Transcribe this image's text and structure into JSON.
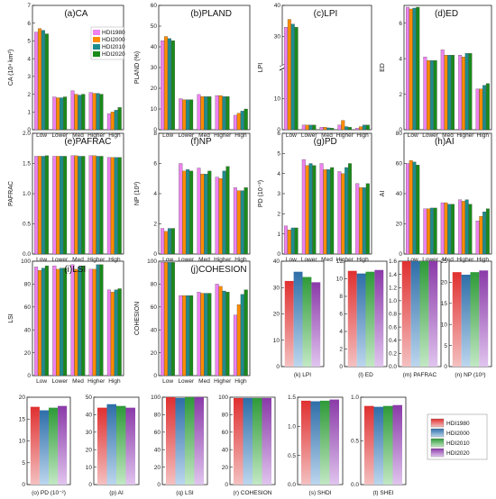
{
  "colors": {
    "HDI1980": "#ee82ee",
    "HDI2000": "#ff8c00",
    "HDI2010": "#1e8c8c",
    "HDI2020": "#1a8a1a",
    "grad": [
      [
        "#e03030",
        "#f4c0c0"
      ],
      [
        "#2e6ea8",
        "#bcd6ee"
      ],
      [
        "#2e9a38",
        "#c2e8c4"
      ],
      [
        "#8a3aa8",
        "#e0c4ee"
      ]
    ]
  },
  "chart_data": [
    {
      "type": "bar",
      "id": "a",
      "title": "(a)CA",
      "ylabel": "CA (10⁴ km²)",
      "ylim": [
        0,
        7
      ],
      "yticks": [
        0,
        1,
        2,
        3,
        4,
        5,
        6,
        7
      ],
      "categories": [
        "Low",
        "Lower",
        "Med",
        "Higher",
        "High"
      ],
      "legend": "top-right",
      "series": [
        {
          "name": "HDI1980",
          "values": [
            5.5,
            1.85,
            2.2,
            2.1,
            0.9
          ]
        },
        {
          "name": "HDI2000",
          "values": [
            5.7,
            1.8,
            2.0,
            2.05,
            1.0
          ]
        },
        {
          "name": "HDI2010",
          "values": [
            5.6,
            1.8,
            1.95,
            2.05,
            1.1
          ]
        },
        {
          "name": "HDI2020",
          "values": [
            5.4,
            1.85,
            2.0,
            2.0,
            1.25
          ]
        }
      ]
    },
    {
      "type": "bar",
      "id": "b",
      "title": "(b)PLAND",
      "ylabel": "PLAND (%)",
      "ylim": [
        0,
        60
      ],
      "yticks": [
        0,
        10,
        20,
        30,
        40,
        50,
        60
      ],
      "categories": [
        "Low",
        "Lower",
        "Med",
        "Higher",
        "High"
      ],
      "series": [
        {
          "name": "HDI1980",
          "values": [
            43,
            15,
            17,
            16.5,
            7
          ]
        },
        {
          "name": "HDI2000",
          "values": [
            45,
            14.5,
            16,
            16.5,
            8
          ]
        },
        {
          "name": "HDI2010",
          "values": [
            44,
            14.5,
            16,
            16,
            9
          ]
        },
        {
          "name": "HDI2020",
          "values": [
            43,
            14.5,
            16,
            16,
            10
          ]
        }
      ]
    },
    {
      "type": "bar",
      "id": "c",
      "title": "(c)LPI",
      "ylabel": "LPI",
      "ylim": [
        0,
        40
      ],
      "yticks": [
        0,
        10,
        30,
        40
      ],
      "broken": true,
      "categories": [
        "Low",
        "Lower",
        "Med",
        "Higher",
        "High"
      ],
      "series": [
        {
          "name": "HDI1980",
          "values": [
            33,
            1.5,
            0.8,
            1.5,
            0.5
          ]
        },
        {
          "name": "HDI2000",
          "values": [
            35.5,
            1.5,
            0.8,
            3,
            1
          ]
        },
        {
          "name": "HDI2010",
          "values": [
            34,
            1.5,
            0.6,
            1,
            1.5
          ]
        },
        {
          "name": "HDI2020",
          "values": [
            33,
            1.5,
            0.5,
            0.8,
            1.5
          ]
        }
      ]
    },
    {
      "type": "bar",
      "id": "d",
      "title": "(d)ED",
      "ylabel": "ED",
      "ylim": [
        0,
        7
      ],
      "yticks": [
        0,
        2,
        4,
        6
      ],
      "categories": [
        "Low",
        "Lower",
        "Med",
        "Higher",
        "High"
      ],
      "series": [
        {
          "name": "HDI1980",
          "values": [
            6.9,
            4.1,
            4.5,
            4.2,
            2.3
          ]
        },
        {
          "name": "HDI2000",
          "values": [
            6.8,
            3.9,
            4.2,
            4.1,
            2.3
          ]
        },
        {
          "name": "HDI2010",
          "values": [
            6.85,
            3.9,
            4.2,
            4.3,
            2.5
          ]
        },
        {
          "name": "HDI2020",
          "values": [
            6.9,
            3.9,
            4.2,
            4.3,
            2.6
          ]
        }
      ]
    },
    {
      "type": "bar",
      "id": "e",
      "title": "(e)PAFRAC",
      "ylabel": "PAFRAC",
      "ylim": [
        0,
        2.0
      ],
      "yticks": [
        0.0,
        0.5,
        1.0,
        1.5,
        2.0
      ],
      "categories": [
        "Low",
        "Lower",
        "Med",
        "Higher",
        "High"
      ],
      "series": [
        {
          "name": "HDI1980",
          "values": [
            1.62,
            1.62,
            1.63,
            1.63,
            1.6
          ]
        },
        {
          "name": "HDI2000",
          "values": [
            1.62,
            1.62,
            1.63,
            1.63,
            1.6
          ]
        },
        {
          "name": "HDI2010",
          "values": [
            1.62,
            1.62,
            1.62,
            1.62,
            1.6
          ]
        },
        {
          "name": "HDI2020",
          "values": [
            1.63,
            1.62,
            1.62,
            1.62,
            1.6
          ]
        }
      ]
    },
    {
      "type": "bar",
      "id": "f",
      "title": "(f)NP",
      "ylabel": "NP (10³)",
      "ylim": [
        0,
        8
      ],
      "yticks": [
        0,
        2,
        4,
        6,
        8
      ],
      "categories": [
        "Low",
        "Lower",
        "Med",
        "Higher",
        "High"
      ],
      "series": [
        {
          "name": "HDI1980",
          "values": [
            1.7,
            6.0,
            5.7,
            5.1,
            4.4
          ]
        },
        {
          "name": "HDI2000",
          "values": [
            1.5,
            5.5,
            5.3,
            5.0,
            4.2
          ]
        },
        {
          "name": "HDI2010",
          "values": [
            1.7,
            5.6,
            5.3,
            5.5,
            4.2
          ]
        },
        {
          "name": "HDI2020",
          "values": [
            1.7,
            5.5,
            5.5,
            5.8,
            4.4
          ]
        }
      ]
    },
    {
      "type": "bar",
      "id": "g",
      "title": "(g)PD",
      "ylabel": "PD (10⁻²)",
      "ylim": [
        0,
        6
      ],
      "yticks": [
        0,
        1,
        2,
        3,
        4,
        5,
        6
      ],
      "categories": [
        "Low",
        "Lower",
        "Med",
        "Higher",
        "High"
      ],
      "series": [
        {
          "name": "HDI1980",
          "values": [
            1.4,
            4.7,
            4.5,
            4.1,
            3.5
          ]
        },
        {
          "name": "HDI2000",
          "values": [
            1.2,
            4.4,
            4.2,
            4.0,
            3.3
          ]
        },
        {
          "name": "HDI2010",
          "values": [
            1.3,
            4.5,
            4.2,
            4.3,
            3.3
          ]
        },
        {
          "name": "HDI2020",
          "values": [
            1.3,
            4.4,
            4.3,
            4.5,
            3.5
          ]
        }
      ]
    },
    {
      "type": "bar",
      "id": "h",
      "title": "(h)AI",
      "ylabel": "AI",
      "ylim": [
        0,
        80
      ],
      "yticks": [
        0,
        20,
        40,
        60,
        80
      ],
      "categories": [
        "Low",
        "Lower",
        "Med",
        "Higher",
        "High"
      ],
      "series": [
        {
          "name": "HDI1980",
          "values": [
            60,
            30,
            34,
            36,
            22
          ]
        },
        {
          "name": "HDI2000",
          "values": [
            62,
            30,
            34,
            35,
            25
          ]
        },
        {
          "name": "HDI2010",
          "values": [
            61,
            30.5,
            33,
            36,
            28
          ]
        },
        {
          "name": "HDI2020",
          "values": [
            59,
            30.5,
            33,
            33,
            30
          ]
        }
      ]
    },
    {
      "type": "bar",
      "id": "i",
      "title": "(i)LSI",
      "ylabel": "LSI",
      "ylim": [
        0,
        100
      ],
      "yticks": [
        0,
        20,
        40,
        60,
        80,
        100
      ],
      "categories": [
        "Low",
        "Lower",
        "Med",
        "Higher",
        "High"
      ],
      "series": [
        {
          "name": "HDI1980",
          "values": [
            95,
            96,
            97,
            93,
            75
          ]
        },
        {
          "name": "HDI2000",
          "values": [
            92,
            93,
            93,
            93,
            73
          ]
        },
        {
          "name": "HDI2010",
          "values": [
            94,
            94,
            95,
            97,
            75
          ]
        },
        {
          "name": "HDI2020",
          "values": [
            96,
            94,
            96,
            97,
            76
          ]
        }
      ]
    },
    {
      "type": "bar",
      "id": "j",
      "title": "(j)COHESION",
      "ylabel": "COHESION",
      "ylim": [
        0,
        100
      ],
      "yticks": [
        0,
        20,
        40,
        60,
        80,
        100
      ],
      "categories": [
        "Low",
        "Lower",
        "Med",
        "Higher",
        "High"
      ],
      "series": [
        {
          "name": "HDI1980",
          "values": [
            99,
            70,
            73,
            80,
            53
          ]
        },
        {
          "name": "HDI2000",
          "values": [
            99,
            70,
            72,
            78,
            62
          ]
        },
        {
          "name": "HDI2010",
          "values": [
            99,
            70,
            72,
            74,
            71
          ]
        },
        {
          "name": "HDI2020",
          "values": [
            99,
            70,
            72,
            73,
            75
          ]
        }
      ]
    },
    {
      "type": "bar",
      "id": "k",
      "title": "",
      "xlabel": "(k) LPI",
      "ylim": [
        0,
        40
      ],
      "yticks": [
        0,
        10,
        20,
        30,
        40
      ],
      "gradient": true,
      "values": [
        32.5,
        36,
        34,
        32
      ]
    },
    {
      "type": "bar",
      "id": "l",
      "title": "",
      "xlabel": "(l) ED",
      "ylim": [
        0,
        12
      ],
      "yticks": [
        0,
        2,
        4,
        6,
        8,
        10,
        12
      ],
      "gradient": true,
      "values": [
        10.9,
        10.6,
        10.8,
        11.0
      ]
    },
    {
      "type": "bar",
      "id": "m",
      "title": "",
      "xlabel": "(m) PAFRAC",
      "ylim": [
        0,
        1.6
      ],
      "yticks": [
        0,
        0.2,
        0.4,
        0.6,
        0.8,
        1.0,
        1.2,
        1.4,
        1.6
      ],
      "gradient": true,
      "values": [
        1.62,
        1.62,
        1.62,
        1.62
      ]
    },
    {
      "type": "bar",
      "id": "n",
      "title": "",
      "xlabel": "(n) NP (10³)",
      "ylim": [
        0,
        25
      ],
      "yticks": [
        0,
        5,
        10,
        15,
        20,
        25
      ],
      "gradient": true,
      "values": [
        22.4,
        21.8,
        22.4,
        22.8
      ]
    },
    {
      "type": "bar",
      "id": "o",
      "title": "",
      "xlabel": "(o) PD (10⁻²)",
      "ylim": [
        0,
        20
      ],
      "yticks": [
        0,
        5,
        10,
        15,
        20
      ],
      "gradient": true,
      "values": [
        17.8,
        17.0,
        17.6,
        18.0
      ]
    },
    {
      "type": "bar",
      "id": "p",
      "title": "",
      "xlabel": "(p) AI",
      "ylim": [
        0,
        50
      ],
      "yticks": [
        0,
        10,
        20,
        30,
        40,
        50
      ],
      "gradient": true,
      "values": [
        44,
        46,
        45,
        44
      ]
    },
    {
      "type": "bar",
      "id": "q",
      "title": "",
      "xlabel": "(q) LSI",
      "ylim": [
        0,
        100
      ],
      "yticks": [
        0,
        20,
        40,
        60,
        80,
        100
      ],
      "gradient": true,
      "values": [
        102,
        99,
        101,
        102
      ]
    },
    {
      "type": "bar",
      "id": "r",
      "title": "",
      "xlabel": "(r) COHESION",
      "ylim": [
        0,
        100
      ],
      "yticks": [
        0,
        20,
        40,
        60,
        80,
        100
      ],
      "gradient": true,
      "values": [
        99,
        99,
        99,
        99
      ]
    },
    {
      "type": "bar",
      "id": "s",
      "title": "",
      "xlabel": "(s) SHDI",
      "ylim": [
        0,
        1.5
      ],
      "yticks": [
        0.0,
        0.5,
        1.0,
        1.5
      ],
      "gradient": true,
      "values": [
        1.44,
        1.43,
        1.44,
        1.46
      ]
    },
    {
      "type": "bar",
      "id": "t",
      "title": "",
      "xlabel": "(t) SHEI",
      "ylim": [
        0,
        1.0
      ],
      "yticks": [
        0.0,
        0.5,
        1.0
      ],
      "gradient": true,
      "values": [
        0.9,
        0.89,
        0.9,
        0.91
      ]
    }
  ],
  "legend_top": [
    "HDI1980",
    "HDI2000",
    "HDI2010",
    "HDI2020"
  ],
  "legend_bottom": [
    "HDI1980",
    "HDI2000",
    "HDI2010",
    "HDI2020"
  ]
}
